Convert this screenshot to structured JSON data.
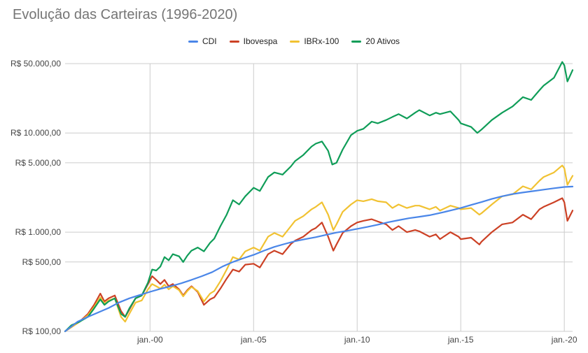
{
  "chart_data": {
    "type": "line",
    "title": "Evolução das Carteiras (1996-2020)",
    "xlabel": "",
    "ylabel": "",
    "y_scale": "log",
    "ylim": [
      100,
      55000
    ],
    "xlim": [
      1995.9,
      2020.4
    ],
    "legend_position": "top-center",
    "grid": true,
    "x_ticks": [
      {
        "value": 2000,
        "label": "jan.-00"
      },
      {
        "value": 2005,
        "label": "jan.-05"
      },
      {
        "value": 2010,
        "label": "jan.-10"
      },
      {
        "value": 2015,
        "label": "jan.-15"
      },
      {
        "value": 2020,
        "label": "jan.-20"
      }
    ],
    "y_ticks": [
      {
        "value": 100,
        "label": "R$ 100,00"
      },
      {
        "value": 500,
        "label": "R$ 500,00"
      },
      {
        "value": 1000,
        "label": "R$ 1.000,00"
      },
      {
        "value": 5000,
        "label": "R$ 5.000,00"
      },
      {
        "value": 10000,
        "label": "R$ 10.000,00"
      },
      {
        "value": 50000,
        "label": "R$ 50.000,00"
      }
    ],
    "series": [
      {
        "name": "CDI",
        "color": "#4a86e8",
        "points": [
          [
            1995.9,
            100
          ],
          [
            1996.5,
            125
          ],
          [
            1997,
            140
          ],
          [
            1997.5,
            155
          ],
          [
            1998,
            172
          ],
          [
            1998.5,
            195
          ],
          [
            1999,
            215
          ],
          [
            1999.5,
            232
          ],
          [
            2000,
            250
          ],
          [
            2000.5,
            268
          ],
          [
            2001,
            285
          ],
          [
            2001.5,
            305
          ],
          [
            2002,
            330
          ],
          [
            2002.5,
            360
          ],
          [
            2003,
            395
          ],
          [
            2003.5,
            450
          ],
          [
            2004,
            500
          ],
          [
            2004.5,
            545
          ],
          [
            2005,
            590
          ],
          [
            2005.5,
            650
          ],
          [
            2006,
            710
          ],
          [
            2006.5,
            760
          ],
          [
            2007,
            810
          ],
          [
            2007.5,
            850
          ],
          [
            2008,
            890
          ],
          [
            2008.5,
            940
          ],
          [
            2009,
            990
          ],
          [
            2009.5,
            1030
          ],
          [
            2010,
            1080
          ],
          [
            2010.5,
            1130
          ],
          [
            2011,
            1190
          ],
          [
            2011.5,
            1260
          ],
          [
            2012,
            1320
          ],
          [
            2012.5,
            1380
          ],
          [
            2013,
            1430
          ],
          [
            2013.5,
            1480
          ],
          [
            2014,
            1560
          ],
          [
            2014.5,
            1650
          ],
          [
            2015,
            1750
          ],
          [
            2015.5,
            1880
          ],
          [
            2016,
            2010
          ],
          [
            2016.5,
            2160
          ],
          [
            2017,
            2300
          ],
          [
            2017.5,
            2420
          ],
          [
            2018,
            2510
          ],
          [
            2018.5,
            2590
          ],
          [
            2019,
            2680
          ],
          [
            2019.5,
            2770
          ],
          [
            2020,
            2850
          ],
          [
            2020.4,
            2880
          ]
        ]
      },
      {
        "name": "Ibovespa",
        "color": "#cc4125",
        "points": [
          [
            1995.9,
            100
          ],
          [
            1996.2,
            110
          ],
          [
            1996.6,
            125
          ],
          [
            1997,
            150
          ],
          [
            1997.3,
            185
          ],
          [
            1997.6,
            240
          ],
          [
            1997.8,
            200
          ],
          [
            1998,
            215
          ],
          [
            1998.3,
            230
          ],
          [
            1998.6,
            160
          ],
          [
            1998.8,
            140
          ],
          [
            1999,
            165
          ],
          [
            1999.3,
            215
          ],
          [
            1999.6,
            230
          ],
          [
            1999.9,
            300
          ],
          [
            2000.1,
            360
          ],
          [
            2000.3,
            330
          ],
          [
            2000.5,
            300
          ],
          [
            2000.7,
            330
          ],
          [
            2000.9,
            285
          ],
          [
            2001.1,
            300
          ],
          [
            2001.4,
            265
          ],
          [
            2001.6,
            230
          ],
          [
            2001.8,
            260
          ],
          [
            2002,
            285
          ],
          [
            2002.3,
            250
          ],
          [
            2002.6,
            185
          ],
          [
            2002.9,
            210
          ],
          [
            2003.1,
            220
          ],
          [
            2003.4,
            270
          ],
          [
            2003.7,
            340
          ],
          [
            2004,
            420
          ],
          [
            2004.3,
            400
          ],
          [
            2004.6,
            470
          ],
          [
            2005,
            480
          ],
          [
            2005.3,
            440
          ],
          [
            2005.7,
            600
          ],
          [
            2006,
            650
          ],
          [
            2006.4,
            600
          ],
          [
            2006.8,
            760
          ],
          [
            2007,
            820
          ],
          [
            2007.4,
            900
          ],
          [
            2007.8,
            1050
          ],
          [
            2008,
            1100
          ],
          [
            2008.3,
            1250
          ],
          [
            2008.6,
            900
          ],
          [
            2008.85,
            650
          ],
          [
            2009,
            750
          ],
          [
            2009.3,
            980
          ],
          [
            2009.7,
            1150
          ],
          [
            2010,
            1250
          ],
          [
            2010.3,
            1300
          ],
          [
            2010.7,
            1350
          ],
          [
            2011,
            1280
          ],
          [
            2011.4,
            1200
          ],
          [
            2011.7,
            1050
          ],
          [
            2012,
            1150
          ],
          [
            2012.4,
            1000
          ],
          [
            2012.8,
            1050
          ],
          [
            2013,
            1020
          ],
          [
            2013.5,
            900
          ],
          [
            2013.8,
            950
          ],
          [
            2014,
            850
          ],
          [
            2014.5,
            1000
          ],
          [
            2014.9,
            900
          ],
          [
            2015,
            850
          ],
          [
            2015.5,
            880
          ],
          [
            2015.9,
            750
          ],
          [
            2016,
            800
          ],
          [
            2016.5,
            1000
          ],
          [
            2017,
            1200
          ],
          [
            2017.5,
            1250
          ],
          [
            2018,
            1500
          ],
          [
            2018.4,
            1350
          ],
          [
            2018.8,
            1700
          ],
          [
            2019,
            1800
          ],
          [
            2019.5,
            2000
          ],
          [
            2019.9,
            2200
          ],
          [
            2020,
            2000
          ],
          [
            2020.15,
            1300
          ],
          [
            2020.4,
            1650
          ]
        ]
      },
      {
        "name": "IBRx-100",
        "color": "#f1c232",
        "points": [
          [
            1995.9,
            100
          ],
          [
            1996.2,
            110
          ],
          [
            1996.6,
            125
          ],
          [
            1997,
            145
          ],
          [
            1997.3,
            175
          ],
          [
            1997.6,
            220
          ],
          [
            1997.8,
            190
          ],
          [
            1998,
            205
          ],
          [
            1998.3,
            215
          ],
          [
            1998.6,
            140
          ],
          [
            1998.8,
            125
          ],
          [
            1999,
            150
          ],
          [
            1999.3,
            195
          ],
          [
            1999.6,
            205
          ],
          [
            1999.9,
            265
          ],
          [
            2000.1,
            300
          ],
          [
            2000.3,
            285
          ],
          [
            2000.5,
            270
          ],
          [
            2000.7,
            295
          ],
          [
            2000.9,
            265
          ],
          [
            2001.1,
            285
          ],
          [
            2001.4,
            260
          ],
          [
            2001.6,
            225
          ],
          [
            2001.8,
            255
          ],
          [
            2002,
            280
          ],
          [
            2002.3,
            255
          ],
          [
            2002.6,
            200
          ],
          [
            2002.9,
            240
          ],
          [
            2003.1,
            255
          ],
          [
            2003.4,
            320
          ],
          [
            2003.7,
            420
          ],
          [
            2004,
            560
          ],
          [
            2004.3,
            530
          ],
          [
            2004.6,
            640
          ],
          [
            2005,
            700
          ],
          [
            2005.3,
            650
          ],
          [
            2005.7,
            900
          ],
          [
            2006,
            980
          ],
          [
            2006.4,
            900
          ],
          [
            2006.8,
            1150
          ],
          [
            2007,
            1300
          ],
          [
            2007.4,
            1450
          ],
          [
            2007.8,
            1700
          ],
          [
            2008,
            1800
          ],
          [
            2008.3,
            2000
          ],
          [
            2008.6,
            1500
          ],
          [
            2008.85,
            1050
          ],
          [
            2009,
            1200
          ],
          [
            2009.3,
            1600
          ],
          [
            2009.7,
            1900
          ],
          [
            2010,
            2100
          ],
          [
            2010.3,
            2050
          ],
          [
            2010.7,
            2150
          ],
          [
            2011,
            2050
          ],
          [
            2011.4,
            2000
          ],
          [
            2011.7,
            1750
          ],
          [
            2012,
            1900
          ],
          [
            2012.4,
            1750
          ],
          [
            2012.8,
            1850
          ],
          [
            2013,
            1850
          ],
          [
            2013.5,
            1700
          ],
          [
            2013.8,
            1800
          ],
          [
            2014,
            1650
          ],
          [
            2014.5,
            1850
          ],
          [
            2014.9,
            1750
          ],
          [
            2015,
            1700
          ],
          [
            2015.5,
            1750
          ],
          [
            2015.9,
            1500
          ],
          [
            2016,
            1550
          ],
          [
            2016.5,
            1900
          ],
          [
            2017,
            2300
          ],
          [
            2017.5,
            2400
          ],
          [
            2018,
            2900
          ],
          [
            2018.4,
            2700
          ],
          [
            2018.8,
            3300
          ],
          [
            2019,
            3600
          ],
          [
            2019.5,
            4000
          ],
          [
            2019.9,
            4700
          ],
          [
            2020,
            4400
          ],
          [
            2020.15,
            3000
          ],
          [
            2020.4,
            3700
          ]
        ]
      },
      {
        "name": "20 Ativos",
        "color": "#0f9d58",
        "points": [
          [
            1995.9,
            100
          ],
          [
            1996.2,
            115
          ],
          [
            1996.6,
            125
          ],
          [
            1997,
            140
          ],
          [
            1997.3,
            170
          ],
          [
            1997.6,
            210
          ],
          [
            1997.8,
            185
          ],
          [
            1998,
            200
          ],
          [
            1998.3,
            215
          ],
          [
            1998.6,
            150
          ],
          [
            1998.8,
            140
          ],
          [
            1999,
            170
          ],
          [
            1999.3,
            215
          ],
          [
            1999.6,
            230
          ],
          [
            1999.9,
            310
          ],
          [
            2000.1,
            420
          ],
          [
            2000.3,
            410
          ],
          [
            2000.5,
            450
          ],
          [
            2000.7,
            560
          ],
          [
            2000.9,
            520
          ],
          [
            2001.1,
            600
          ],
          [
            2001.4,
            570
          ],
          [
            2001.6,
            500
          ],
          [
            2001.8,
            580
          ],
          [
            2002,
            650
          ],
          [
            2002.3,
            700
          ],
          [
            2002.6,
            640
          ],
          [
            2002.9,
            780
          ],
          [
            2003.1,
            860
          ],
          [
            2003.4,
            1150
          ],
          [
            2003.7,
            1500
          ],
          [
            2004,
            2100
          ],
          [
            2004.3,
            1900
          ],
          [
            2004.6,
            2300
          ],
          [
            2005,
            2800
          ],
          [
            2005.3,
            2600
          ],
          [
            2005.7,
            3600
          ],
          [
            2006,
            4000
          ],
          [
            2006.4,
            3800
          ],
          [
            2006.8,
            4600
          ],
          [
            2007,
            5200
          ],
          [
            2007.4,
            6000
          ],
          [
            2007.8,
            7300
          ],
          [
            2008,
            7800
          ],
          [
            2008.3,
            8200
          ],
          [
            2008.6,
            6600
          ],
          [
            2008.8,
            4800
          ],
          [
            2009,
            5000
          ],
          [
            2009.3,
            6800
          ],
          [
            2009.7,
            9500
          ],
          [
            2010,
            10500
          ],
          [
            2010.3,
            11000
          ],
          [
            2010.7,
            13000
          ],
          [
            2011,
            12500
          ],
          [
            2011.4,
            13500
          ],
          [
            2011.7,
            14500
          ],
          [
            2012,
            15500
          ],
          [
            2012.4,
            14000
          ],
          [
            2012.8,
            16000
          ],
          [
            2013,
            17000
          ],
          [
            2013.5,
            15000
          ],
          [
            2013.8,
            16000
          ],
          [
            2014,
            15500
          ],
          [
            2014.5,
            16500
          ],
          [
            2014.9,
            13500
          ],
          [
            2015,
            12500
          ],
          [
            2015.5,
            11500
          ],
          [
            2015.8,
            10000
          ],
          [
            2016,
            10800
          ],
          [
            2016.5,
            13500
          ],
          [
            2017,
            16000
          ],
          [
            2017.5,
            18500
          ],
          [
            2018,
            23000
          ],
          [
            2018.4,
            21500
          ],
          [
            2018.8,
            27000
          ],
          [
            2019,
            30000
          ],
          [
            2019.5,
            36000
          ],
          [
            2019.9,
            52000
          ],
          [
            2020,
            48000
          ],
          [
            2020.15,
            33000
          ],
          [
            2020.4,
            43000
          ]
        ]
      }
    ]
  }
}
